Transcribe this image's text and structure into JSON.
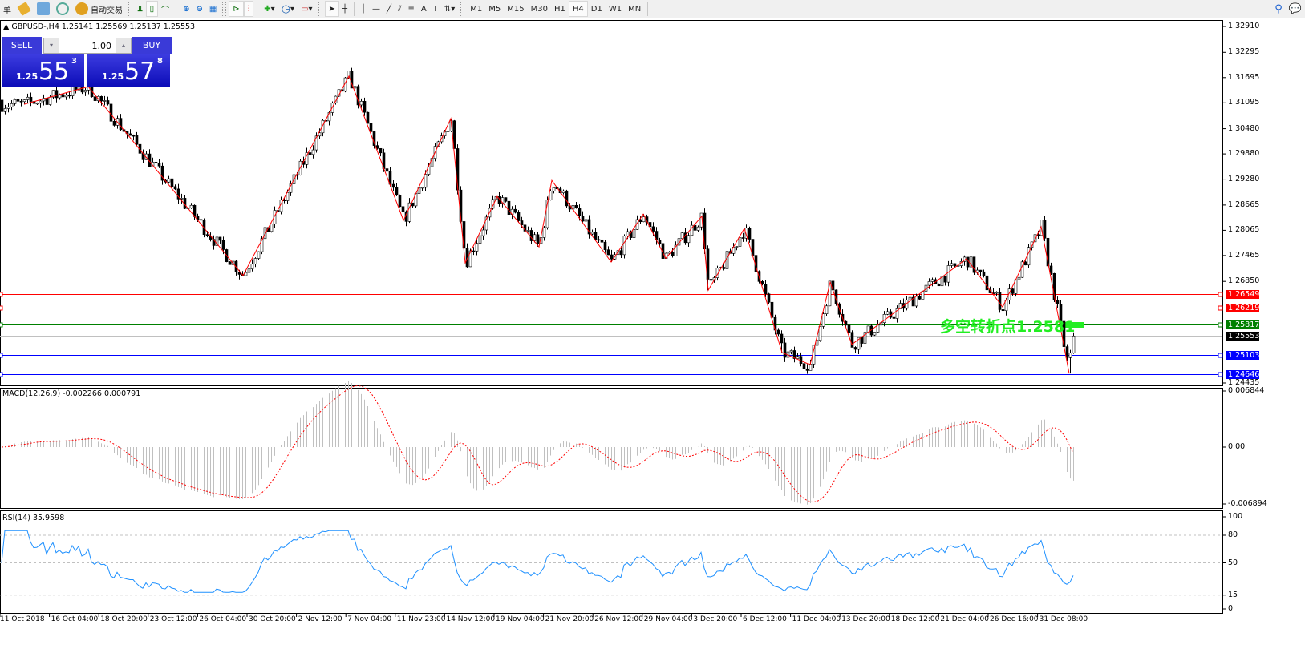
{
  "toolbar": {
    "menu_fragment": "单",
    "auto_trading_label": "自动交易",
    "periods": [
      "M1",
      "M5",
      "M15",
      "M30",
      "H1",
      "H4",
      "D1",
      "W1",
      "MN"
    ],
    "active_period": "H4"
  },
  "chart": {
    "header": "GBPUSD-,H4  1.25141 1.25569 1.25137 1.25553",
    "price_axis": [
      "1.32910",
      "1.32295",
      "1.31695",
      "1.31095",
      "1.30480",
      "1.29880",
      "1.29280",
      "1.28665",
      "1.28065",
      "1.27465",
      "1.26850",
      "1.24435"
    ],
    "levels": [
      {
        "price": "1.26549",
        "color": "#ff0000"
      },
      {
        "price": "1.26219",
        "color": "#ff0000"
      },
      {
        "price": "1.25817",
        "color": "#008000"
      },
      {
        "price": "1.25553",
        "color": "#000000"
      },
      {
        "price": "1.25103",
        "color": "#0000ff"
      },
      {
        "price": "1.24646",
        "color": "#0000ff"
      }
    ],
    "pivot_annotation": "多空转折点1.2581",
    "dates": [
      "11 Oct 2018",
      "16 Oct 04:00",
      "18 Oct 20:00",
      "23 Oct 12:00",
      "26 Oct 04:00",
      "30 Oct 20:00",
      "2 Nov 12:00",
      "7 Nov 04:00",
      "11 Nov 23:00",
      "14 Nov 12:00",
      "19 Nov 04:00",
      "21 Nov 20:00",
      "26 Nov 12:00",
      "29 Nov 04:00",
      "3 Dec 20:00",
      "6 Dec 12:00",
      "11 Dec 04:00",
      "13 Dec 20:00",
      "18 Dec 12:00",
      "21 Dec 04:00",
      "26 Dec 16:00",
      "31 Dec 08:00"
    ]
  },
  "trade_panel": {
    "sell_label": "SELL",
    "buy_label": "BUY",
    "lot": "1.00",
    "sell_prefix": "1.25",
    "sell_big": "55",
    "sell_sup": "3",
    "buy_prefix": "1.25",
    "buy_big": "57",
    "buy_sup": "8"
  },
  "macd": {
    "label": "MACD(12,26,9) -0.002266 0.000791",
    "axis": [
      "0.006844",
      "0.00",
      "-0.006894"
    ]
  },
  "rsi": {
    "label": "RSI(14) 35.9598",
    "axis": [
      "100",
      "80",
      "50",
      "15",
      "0"
    ]
  },
  "chart_data": {
    "type": "candlestick",
    "symbol": "GBPUSD-",
    "timeframe": "H4",
    "ylim": [
      1.24435,
      1.3291
    ],
    "zigzag_pivots": [
      1.3106,
      1.3148,
      1.2699,
      1.3173,
      1.283,
      1.3072,
      1.2729,
      1.2887,
      1.2767,
      1.2925,
      1.2731,
      1.2845,
      1.274,
      1.284,
      1.2664,
      1.2811,
      1.2516,
      1.2487,
      1.2683,
      1.2535,
      1.2739,
      1.2624,
      1.2815,
      1.2466
    ],
    "last_close": 1.25553,
    "colors": {
      "zigzag": "#ff0000",
      "macd_hist": "#c0c0c0",
      "macd_signal": "#ff0000",
      "rsi": "#1e90ff"
    }
  }
}
